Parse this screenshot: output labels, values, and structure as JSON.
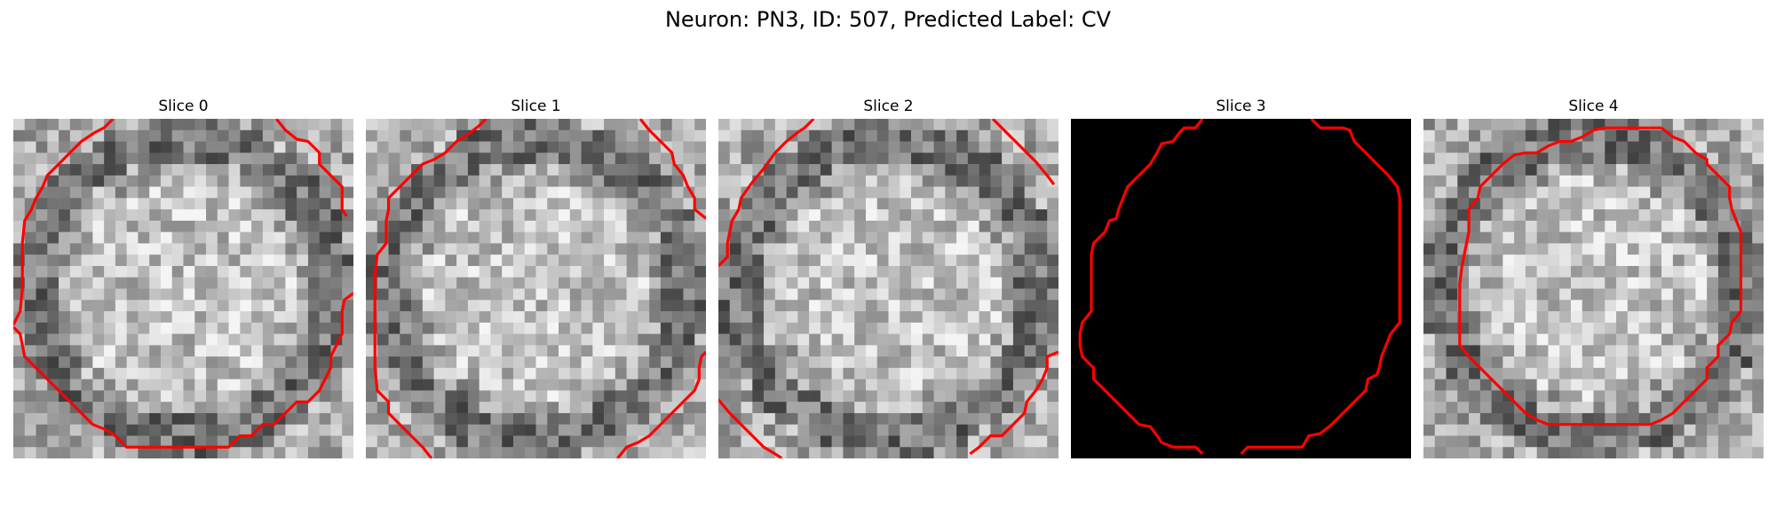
{
  "figure": {
    "title": "Neuron: PN3, ID: 507, Predicted Label: CV"
  },
  "panels": [
    {
      "title": "Slice 0",
      "content": "grayscale-noise",
      "seed": 11
    },
    {
      "title": "Slice 1",
      "content": "grayscale-noise",
      "seed": 23
    },
    {
      "title": "Slice 2",
      "content": "grayscale-noise",
      "seed": 37
    },
    {
      "title": "Slice 3",
      "content": "black",
      "seed": 0
    },
    {
      "title": "Slice 4",
      "content": "grayscale-noise",
      "seed": 53
    }
  ],
  "colors": {
    "contour": "#ff0000",
    "background": "#ffffff",
    "black_slice": "#000000"
  }
}
